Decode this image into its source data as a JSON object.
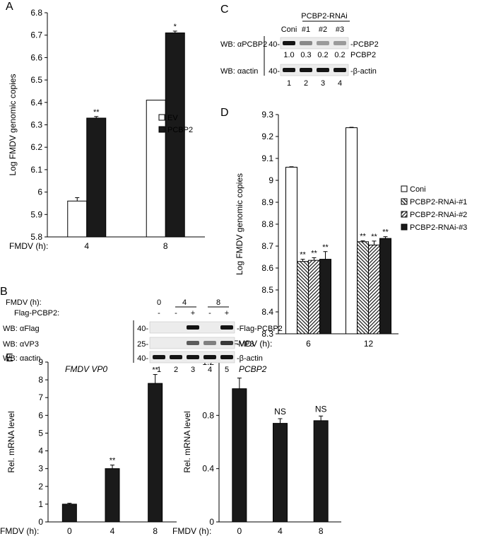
{
  "figure": {
    "panel_labels": [
      "A",
      "B",
      "C",
      "D",
      "E"
    ]
  },
  "chart_data": [
    {
      "panel": "A",
      "type": "bar",
      "xlabel_prefix": "FMDV (h):",
      "categories": [
        "4",
        "8"
      ],
      "ylabel": "Log FMDV genomic copies",
      "ylim": [
        5.8,
        6.8
      ],
      "yticks": [
        5.8,
        5.9,
        6,
        6.1,
        6.2,
        6.3,
        6.4,
        6.5,
        6.6,
        6.7,
        6.8
      ],
      "series": [
        {
          "name": "EV",
          "fill": "#ffffff",
          "values": [
            5.96,
            6.41
          ],
          "errors": [
            0.015,
            0.0
          ],
          "marks": [
            "",
            ""
          ]
        },
        {
          "name": "PCBP2",
          "fill": "#1a1a1a",
          "values": [
            6.33,
            6.71
          ],
          "errors": [
            0.007,
            0.008
          ],
          "marks": [
            "**",
            "*"
          ]
        }
      ],
      "legend_position": "right"
    },
    {
      "panel": "D",
      "type": "bar",
      "xlabel_prefix": "FMDV (h):",
      "categories": [
        "6",
        "12"
      ],
      "ylabel": "Log FMDV genomic copies",
      "ylim": [
        8.3,
        9.3
      ],
      "yticks": [
        8.3,
        8.4,
        8.5,
        8.6,
        8.7,
        8.8,
        8.9,
        9,
        9.1,
        9.2,
        9.3
      ],
      "series": [
        {
          "name": "Coni",
          "fill": "#ffffff",
          "pattern": "none",
          "values": [
            9.06,
            9.24
          ],
          "errors": [
            0.002,
            0.002
          ],
          "marks": [
            "",
            ""
          ]
        },
        {
          "name": "PCBP2-RNAi-#1",
          "fill": "#ffffff",
          "pattern": "hatch-back",
          "values": [
            8.63,
            8.72
          ],
          "errors": [
            0.01,
            0.004
          ],
          "marks": [
            "**",
            "**"
          ]
        },
        {
          "name": "PCBP2-RNAi-#2",
          "fill": "#ffffff",
          "pattern": "hatch-fwd",
          "values": [
            8.635,
            8.705
          ],
          "errors": [
            0.012,
            0.018
          ],
          "marks": [
            "**",
            "**"
          ]
        },
        {
          "name": "PCBP2-RNAi-#3",
          "fill": "#1a1a1a",
          "pattern": "none",
          "values": [
            8.64,
            8.735
          ],
          "errors": [
            0.035,
            0.008
          ],
          "marks": [
            "**",
            "**"
          ]
        }
      ],
      "legend_position": "right"
    },
    {
      "panel": "E",
      "type": "bar",
      "title": "FMDV VP0",
      "xlabel_prefix": "FMDV (h):",
      "categories": [
        "0",
        "4",
        "8"
      ],
      "ylabel": "Rel. mRNA level",
      "ylim": [
        0,
        9
      ],
      "yticks": [
        0,
        1,
        2,
        3,
        4,
        5,
        6,
        7,
        8,
        9
      ],
      "series": [
        {
          "fill": "#1a1a1a",
          "values": [
            1.0,
            3.0,
            7.8
          ],
          "errors": [
            0.05,
            0.2,
            0.5
          ],
          "marks": [
            "",
            "**",
            "**"
          ]
        }
      ]
    },
    {
      "panel": "E",
      "type": "bar",
      "title": "PCBP2",
      "xlabel_prefix": "FMDV (h):",
      "categories": [
        "0",
        "4",
        "8"
      ],
      "ylabel": "Rel. mRNA level",
      "ylim": [
        0,
        1.2
      ],
      "yticks": [
        0,
        0.4,
        0.8,
        1.2
      ],
      "yticklabels": [
        "0",
        "0.4",
        "0.8",
        "1.2"
      ],
      "series": [
        {
          "fill": "#1a1a1a",
          "values": [
            1.0,
            0.74,
            0.76
          ],
          "errors": [
            0.08,
            0.035,
            0.035
          ],
          "marks": [
            "",
            "NS",
            "NS"
          ]
        }
      ]
    }
  ],
  "blot_b": {
    "time_label": "FMDV (h):",
    "time_values": [
      "0",
      "4",
      "8"
    ],
    "flag_label": "Flag-PCBP2:",
    "flag_values": [
      "-",
      "-",
      "+",
      "-",
      "+"
    ],
    "rows": [
      {
        "label": "WB: αFlag",
        "marker": "40-",
        "band": "-Flag-PCBP2",
        "lanes": [
          0,
          0,
          1,
          0,
          1
        ]
      },
      {
        "label": "WB: αVP3",
        "marker": "25-",
        "band": "-VP3",
        "lanes": [
          0,
          0,
          0.6,
          0.4,
          0.8
        ]
      },
      {
        "label": "WB: αactin",
        "marker": "40-",
        "band": "-β-actin",
        "lanes": [
          1,
          1,
          1,
          1,
          1
        ]
      }
    ],
    "lane_numbers": [
      "1",
      "2",
      "3",
      "4",
      "5"
    ]
  },
  "blot_c": {
    "header": "PCBP2-RNAi",
    "lane_labels": [
      "Coni",
      "#1",
      "#2",
      "#3"
    ],
    "rows": [
      {
        "label": "WB: αPCBP2",
        "marker": "40-",
        "band": "-PCBP2",
        "lanes": [
          1,
          0.35,
          0.25,
          0.25
        ]
      },
      {
        "label": "WB: αactin",
        "marker": "40-",
        "band": "-β-actin",
        "lanes": [
          1,
          1,
          1,
          1
        ]
      }
    ],
    "quant_values": [
      "1.0",
      "0.3",
      "0.2",
      "0.2"
    ],
    "quant_label": "PCBP2",
    "lane_numbers": [
      "1",
      "2",
      "3",
      "4"
    ]
  }
}
